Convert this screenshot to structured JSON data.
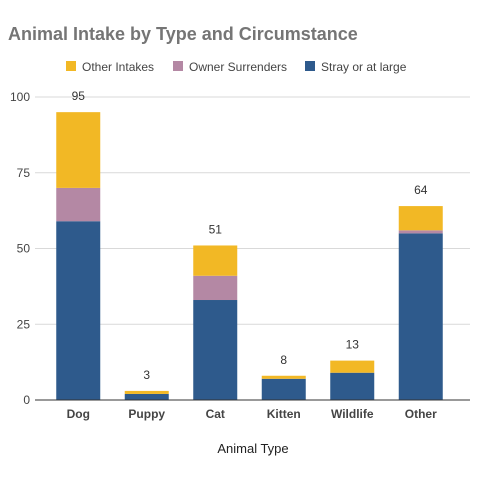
{
  "chart_data": {
    "type": "bar",
    "stacked": true,
    "title": "Animal Intake by Type and Circumstance",
    "xlabel": "Animal Type",
    "ylabel": "",
    "ylim": [
      0,
      100
    ],
    "yticks": [
      0,
      25,
      50,
      75,
      100
    ],
    "grid": true,
    "legend_position": "top",
    "categories": [
      "Dog",
      "Puppy",
      "Cat",
      "Kitten",
      "Wildlife",
      "Other"
    ],
    "series": [
      {
        "name": "Stray or at large",
        "color": "#2e5a8c",
        "values": [
          59,
          2,
          33,
          7,
          9,
          55
        ]
      },
      {
        "name": "Owner Surrenders",
        "color": "#b488a4",
        "values": [
          11,
          0,
          8,
          0,
          0,
          1
        ]
      },
      {
        "name": "Other Intakes",
        "color": "#f2b825",
        "values": [
          25,
          1,
          10,
          1,
          4,
          8
        ]
      }
    ],
    "legend_order": [
      "Other Intakes",
      "Owner Surrenders",
      "Stray or at large"
    ],
    "totals": [
      "95",
      "3",
      "51",
      "8",
      "13",
      "64"
    ]
  }
}
